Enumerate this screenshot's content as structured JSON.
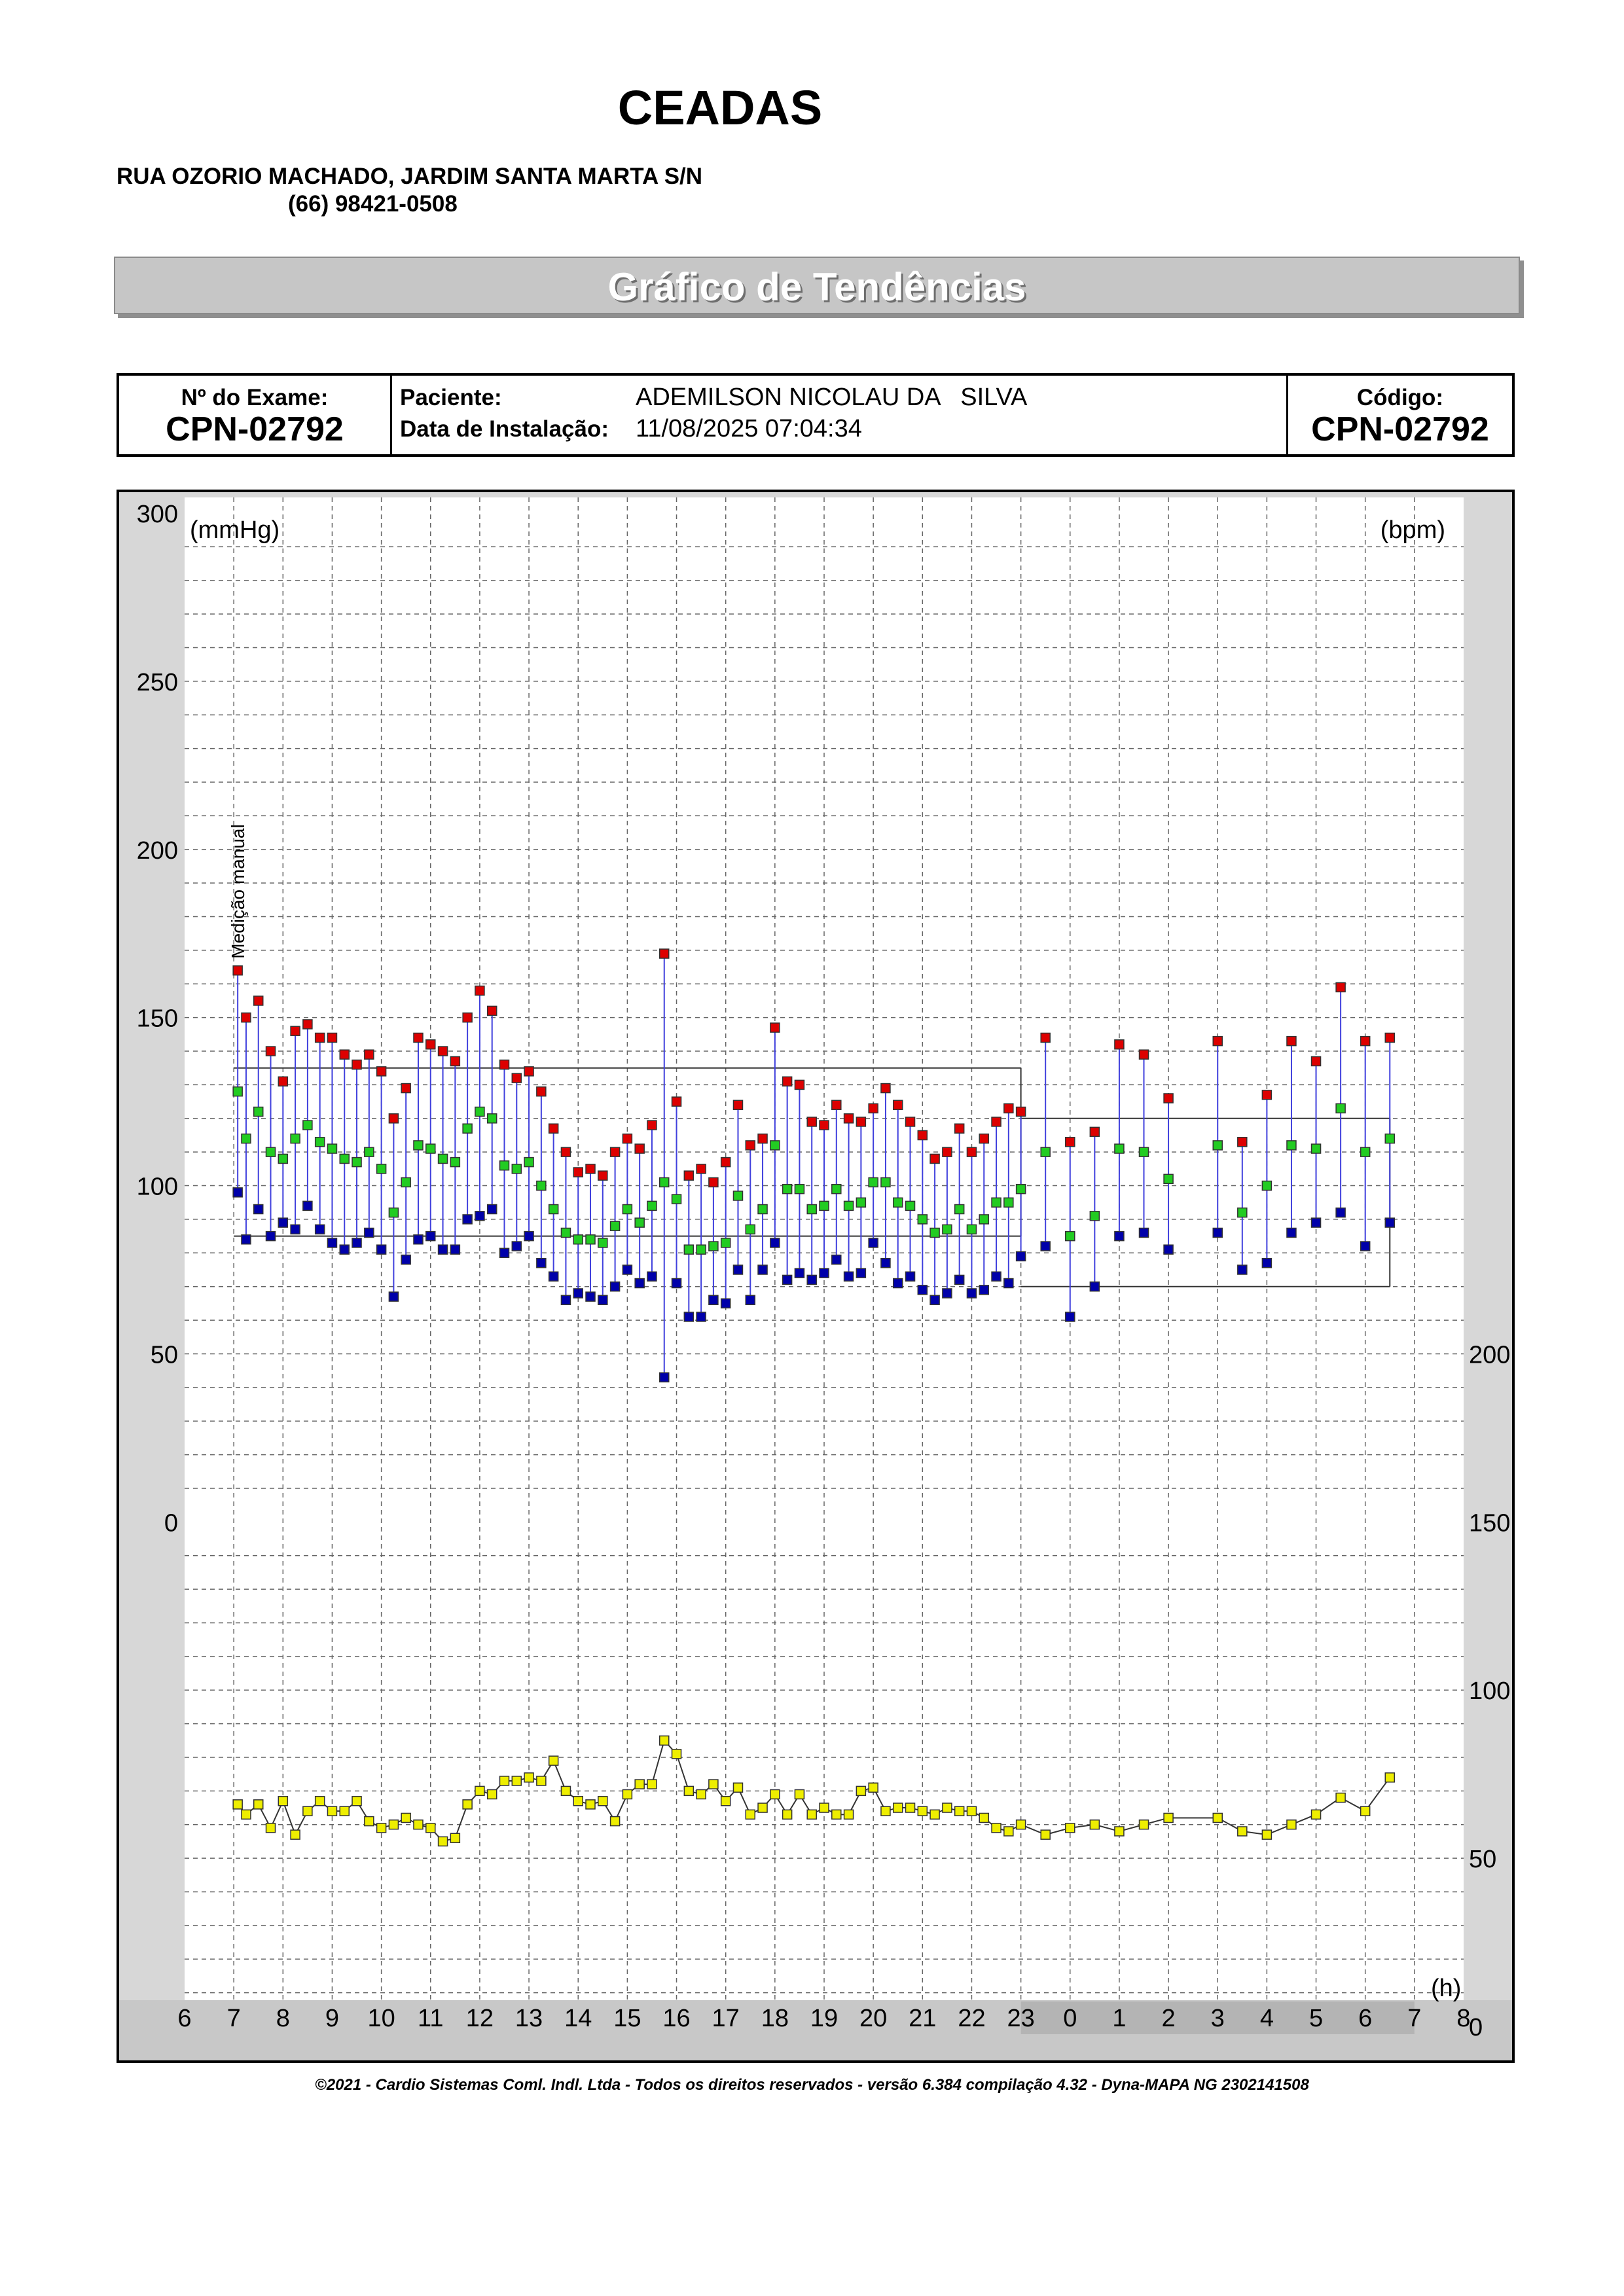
{
  "header": {
    "clinic_name": "CEADAS",
    "address": "RUA OZORIO MACHADO, JARDIM SANTA MARTA S/N",
    "phone": "(66) 98421-0508"
  },
  "report_title": "Gráfico de Tendências",
  "info": {
    "exam_label": "Nº do Exame:",
    "exam_number": "CPN-02792",
    "patient_label": "Paciente:",
    "patient_name": "ADEMILSON NICOLAU DA   SILVA",
    "install_label": "Data de Instalação:",
    "install_date": "11/08/2025 07:04:34",
    "code_label": "Código:",
    "code_value": "CPN-02792"
  },
  "footer": "©2021 - Cardio Sistemas Coml. Indl. Ltda - Todos os direitos reservados - versão 6.384 compilação 4.32 - Dyna-MAPA NG 2302141508",
  "colors": {
    "systolic": "#dd0000",
    "mean": "#22cc22",
    "diastolic": "#0000aa",
    "heart_rate": "#eeee00",
    "connector": "#4040dd",
    "night_band": "#b4b4b4"
  },
  "chart_data": {
    "type": "scatter",
    "left_axis_label": "(mmHg)",
    "right_axis_label": "(bpm)",
    "x_unit_label": "(h)",
    "manual_label": "Medição manual",
    "left_ylim": [
      0,
      300
    ],
    "left_ticks": [
      "0",
      "50",
      "100",
      "150",
      "200",
      "250",
      "300"
    ],
    "right_ylim": [
      0,
      300
    ],
    "right_ticks": [
      "0",
      "50",
      "100",
      "150",
      "200"
    ],
    "x_ticks": [
      "6",
      "7",
      "8",
      "9",
      "10",
      "11",
      "12",
      "13",
      "14",
      "15",
      "16",
      "17",
      "18",
      "19",
      "20",
      "21",
      "22",
      "23",
      "0",
      "1",
      "2",
      "3",
      "4",
      "5",
      "6",
      "7",
      "8"
    ],
    "night_period": [
      23,
      31
    ],
    "day_limit": {
      "start": 7,
      "end": 23,
      "systolic": 135,
      "diastolic": 85
    },
    "night_limit": {
      "start": 23,
      "end": 30.5,
      "systolic": 120,
      "diastolic": 70
    },
    "bp_points": [
      {
        "t": 7.08,
        "sys": 164,
        "mean": 128,
        "dia": 98
      },
      {
        "t": 7.25,
        "sys": 150,
        "mean": 114,
        "dia": 84
      },
      {
        "t": 7.5,
        "sys": 155,
        "mean": 122,
        "dia": 93
      },
      {
        "t": 7.75,
        "sys": 140,
        "mean": 110,
        "dia": 85
      },
      {
        "t": 8.0,
        "sys": 131,
        "mean": 108,
        "dia": 89
      },
      {
        "t": 8.25,
        "sys": 146,
        "mean": 114,
        "dia": 87
      },
      {
        "t": 8.5,
        "sys": 148,
        "mean": 118,
        "dia": 94
      },
      {
        "t": 8.75,
        "sys": 144,
        "mean": 113,
        "dia": 87
      },
      {
        "t": 9.0,
        "sys": 144,
        "mean": 111,
        "dia": 83
      },
      {
        "t": 9.25,
        "sys": 139,
        "mean": 108,
        "dia": 81
      },
      {
        "t": 9.5,
        "sys": 136,
        "mean": 107,
        "dia": 83
      },
      {
        "t": 9.75,
        "sys": 139,
        "mean": 110,
        "dia": 86
      },
      {
        "t": 10.0,
        "sys": 134,
        "mean": 105,
        "dia": 81
      },
      {
        "t": 10.25,
        "sys": 120,
        "mean": 92,
        "dia": 67
      },
      {
        "t": 10.5,
        "sys": 129,
        "mean": 101,
        "dia": 78
      },
      {
        "t": 10.75,
        "sys": 144,
        "mean": 112,
        "dia": 84
      },
      {
        "t": 11.0,
        "sys": 142,
        "mean": 111,
        "dia": 85
      },
      {
        "t": 11.25,
        "sys": 140,
        "mean": 108,
        "dia": 81
      },
      {
        "t": 11.5,
        "sys": 137,
        "mean": 107,
        "dia": 81
      },
      {
        "t": 11.75,
        "sys": 150,
        "mean": 117,
        "dia": 90
      },
      {
        "t": 12.0,
        "sys": 158,
        "mean": 122,
        "dia": 91
      },
      {
        "t": 12.25,
        "sys": 152,
        "mean": 120,
        "dia": 93
      },
      {
        "t": 12.5,
        "sys": 136,
        "mean": 106,
        "dia": 80
      },
      {
        "t": 12.75,
        "sys": 132,
        "mean": 105,
        "dia": 82
      },
      {
        "t": 13.0,
        "sys": 134,
        "mean": 107,
        "dia": 85
      },
      {
        "t": 13.25,
        "sys": 128,
        "mean": 100,
        "dia": 77
      },
      {
        "t": 13.5,
        "sys": 117,
        "mean": 93,
        "dia": 73
      },
      {
        "t": 13.75,
        "sys": 110,
        "mean": 86,
        "dia": 66
      },
      {
        "t": 14.0,
        "sys": 104,
        "mean": 84,
        "dia": 68
      },
      {
        "t": 14.25,
        "sys": 105,
        "mean": 84,
        "dia": 67
      },
      {
        "t": 14.5,
        "sys": 103,
        "mean": 83,
        "dia": 66
      },
      {
        "t": 14.75,
        "sys": 110,
        "mean": 88,
        "dia": 70
      },
      {
        "t": 15.0,
        "sys": 114,
        "mean": 93,
        "dia": 75
      },
      {
        "t": 15.25,
        "sys": 111,
        "mean": 89,
        "dia": 71
      },
      {
        "t": 15.5,
        "sys": 118,
        "mean": 94,
        "dia": 73
      },
      {
        "t": 15.75,
        "sys": 169,
        "mean": 101,
        "dia": 43
      },
      {
        "t": 16.0,
        "sys": 125,
        "mean": 96,
        "dia": 71
      },
      {
        "t": 16.25,
        "sys": 103,
        "mean": 81,
        "dia": 61
      },
      {
        "t": 16.5,
        "sys": 105,
        "mean": 81,
        "dia": 61
      },
      {
        "t": 16.75,
        "sys": 101,
        "mean": 82,
        "dia": 66
      },
      {
        "t": 17.0,
        "sys": 107,
        "mean": 83,
        "dia": 65
      },
      {
        "t": 17.25,
        "sys": 124,
        "mean": 97,
        "dia": 75
      },
      {
        "t": 17.5,
        "sys": 112,
        "mean": 87,
        "dia": 66
      },
      {
        "t": 17.75,
        "sys": 114,
        "mean": 93,
        "dia": 75
      },
      {
        "t": 18.0,
        "sys": 147,
        "mean": 112,
        "dia": 83
      },
      {
        "t": 18.25,
        "sys": 131,
        "mean": 99,
        "dia": 72
      },
      {
        "t": 18.5,
        "sys": 130,
        "mean": 99,
        "dia": 74
      },
      {
        "t": 18.75,
        "sys": 119,
        "mean": 93,
        "dia": 72
      },
      {
        "t": 19.0,
        "sys": 118,
        "mean": 94,
        "dia": 74
      },
      {
        "t": 19.25,
        "sys": 124,
        "mean": 99,
        "dia": 78
      },
      {
        "t": 19.5,
        "sys": 120,
        "mean": 94,
        "dia": 73
      },
      {
        "t": 19.75,
        "sys": 119,
        "mean": 95,
        "dia": 74
      },
      {
        "t": 20.0,
        "sys": 123,
        "mean": 101,
        "dia": 83
      },
      {
        "t": 20.25,
        "sys": 129,
        "mean": 101,
        "dia": 77
      },
      {
        "t": 20.5,
        "sys": 124,
        "mean": 95,
        "dia": 71
      },
      {
        "t": 20.75,
        "sys": 119,
        "mean": 94,
        "dia": 73
      },
      {
        "t": 21.0,
        "sys": 115,
        "mean": 90,
        "dia": 69
      },
      {
        "t": 21.25,
        "sys": 108,
        "mean": 86,
        "dia": 66
      },
      {
        "t": 21.5,
        "sys": 110,
        "mean": 87,
        "dia": 68
      },
      {
        "t": 21.75,
        "sys": 117,
        "mean": 93,
        "dia": 72
      },
      {
        "t": 22.0,
        "sys": 110,
        "mean": 87,
        "dia": 68
      },
      {
        "t": 22.25,
        "sys": 114,
        "mean": 90,
        "dia": 69
      },
      {
        "t": 22.5,
        "sys": 119,
        "mean": 95,
        "dia": 73
      },
      {
        "t": 22.75,
        "sys": 123,
        "mean": 95,
        "dia": 71
      },
      {
        "t": 23.0,
        "sys": 122,
        "mean": 99,
        "dia": 79
      },
      {
        "t": 23.5,
        "sys": 144,
        "mean": 110,
        "dia": 82
      },
      {
        "t": 24.0,
        "sys": 113,
        "mean": 85,
        "dia": 61
      },
      {
        "t": 24.5,
        "sys": 116,
        "mean": 91,
        "dia": 70
      },
      {
        "t": 25.0,
        "sys": 142,
        "mean": 111,
        "dia": 85
      },
      {
        "t": 25.5,
        "sys": 139,
        "mean": 110,
        "dia": 86
      },
      {
        "t": 26.0,
        "sys": 126,
        "mean": 102,
        "dia": 81
      },
      {
        "t": 27.0,
        "sys": 143,
        "mean": 112,
        "dia": 86
      },
      {
        "t": 27.5,
        "sys": 113,
        "mean": 92,
        "dia": 75
      },
      {
        "t": 28.0,
        "sys": 127,
        "mean": 100,
        "dia": 77
      },
      {
        "t": 28.5,
        "sys": 143,
        "mean": 112,
        "dia": 86
      },
      {
        "t": 29.0,
        "sys": 137,
        "mean": 111,
        "dia": 89
      },
      {
        "t": 29.5,
        "sys": 159,
        "mean": 123,
        "dia": 92
      },
      {
        "t": 30.0,
        "sys": 143,
        "mean": 110,
        "dia": 82
      },
      {
        "t": 30.5,
        "sys": 144,
        "mean": 114,
        "dia": 89
      }
    ],
    "hr_points": [
      {
        "t": 7.08,
        "hr": 66
      },
      {
        "t": 7.25,
        "hr": 63
      },
      {
        "t": 7.5,
        "hr": 66
      },
      {
        "t": 7.75,
        "hr": 59
      },
      {
        "t": 8.0,
        "hr": 67
      },
      {
        "t": 8.25,
        "hr": 57
      },
      {
        "t": 8.5,
        "hr": 64
      },
      {
        "t": 8.75,
        "hr": 67
      },
      {
        "t": 9.0,
        "hr": 64
      },
      {
        "t": 9.25,
        "hr": 64
      },
      {
        "t": 9.5,
        "hr": 67
      },
      {
        "t": 9.75,
        "hr": 61
      },
      {
        "t": 10.0,
        "hr": 59
      },
      {
        "t": 10.25,
        "hr": 60
      },
      {
        "t": 10.5,
        "hr": 62
      },
      {
        "t": 10.75,
        "hr": 60
      },
      {
        "t": 11.0,
        "hr": 59
      },
      {
        "t": 11.25,
        "hr": 55
      },
      {
        "t": 11.5,
        "hr": 56
      },
      {
        "t": 11.75,
        "hr": 66
      },
      {
        "t": 12.0,
        "hr": 70
      },
      {
        "t": 12.25,
        "hr": 69
      },
      {
        "t": 12.5,
        "hr": 73
      },
      {
        "t": 12.75,
        "hr": 73
      },
      {
        "t": 13.0,
        "hr": 74
      },
      {
        "t": 13.25,
        "hr": 73
      },
      {
        "t": 13.5,
        "hr": 79
      },
      {
        "t": 13.75,
        "hr": 70
      },
      {
        "t": 14.0,
        "hr": 67
      },
      {
        "t": 14.25,
        "hr": 66
      },
      {
        "t": 14.5,
        "hr": 67
      },
      {
        "t": 14.75,
        "hr": 61
      },
      {
        "t": 15.0,
        "hr": 69
      },
      {
        "t": 15.25,
        "hr": 72
      },
      {
        "t": 15.5,
        "hr": 72
      },
      {
        "t": 15.75,
        "hr": 85
      },
      {
        "t": 16.0,
        "hr": 81
      },
      {
        "t": 16.25,
        "hr": 70
      },
      {
        "t": 16.5,
        "hr": 69
      },
      {
        "t": 16.75,
        "hr": 72
      },
      {
        "t": 17.0,
        "hr": 67
      },
      {
        "t": 17.25,
        "hr": 71
      },
      {
        "t": 17.5,
        "hr": 63
      },
      {
        "t": 17.75,
        "hr": 65
      },
      {
        "t": 18.0,
        "hr": 69
      },
      {
        "t": 18.25,
        "hr": 63
      },
      {
        "t": 18.5,
        "hr": 69
      },
      {
        "t": 18.75,
        "hr": 63
      },
      {
        "t": 19.0,
        "hr": 65
      },
      {
        "t": 19.25,
        "hr": 63
      },
      {
        "t": 19.5,
        "hr": 63
      },
      {
        "t": 19.75,
        "hr": 70
      },
      {
        "t": 20.0,
        "hr": 71
      },
      {
        "t": 20.25,
        "hr": 64
      },
      {
        "t": 20.5,
        "hr": 65
      },
      {
        "t": 20.75,
        "hr": 65
      },
      {
        "t": 21.0,
        "hr": 64
      },
      {
        "t": 21.25,
        "hr": 63
      },
      {
        "t": 21.5,
        "hr": 65
      },
      {
        "t": 21.75,
        "hr": 64
      },
      {
        "t": 22.0,
        "hr": 64
      },
      {
        "t": 22.25,
        "hr": 62
      },
      {
        "t": 22.5,
        "hr": 59
      },
      {
        "t": 22.75,
        "hr": 58
      },
      {
        "t": 23.0,
        "hr": 60
      },
      {
        "t": 23.5,
        "hr": 57
      },
      {
        "t": 24.0,
        "hr": 59
      },
      {
        "t": 24.5,
        "hr": 60
      },
      {
        "t": 25.0,
        "hr": 58
      },
      {
        "t": 25.5,
        "hr": 60
      },
      {
        "t": 26.0,
        "hr": 62
      },
      {
        "t": 27.0,
        "hr": 62
      },
      {
        "t": 27.5,
        "hr": 58
      },
      {
        "t": 28.0,
        "hr": 57
      },
      {
        "t": 28.5,
        "hr": 60
      },
      {
        "t": 29.0,
        "hr": 63
      },
      {
        "t": 29.5,
        "hr": 68
      },
      {
        "t": 30.0,
        "hr": 64
      },
      {
        "t": 30.5,
        "hr": 74
      }
    ]
  }
}
